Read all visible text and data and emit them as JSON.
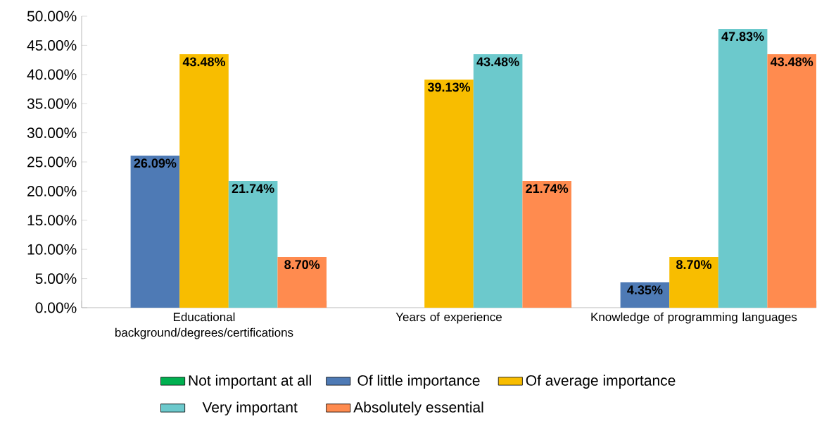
{
  "chart_data": {
    "type": "bar",
    "categories": [
      "Educational background/degrees/certifications",
      "Years of experience",
      "Knowledge of programming languages"
    ],
    "series": [
      {
        "name": "Not important at all",
        "color": "#00b050",
        "values": [
          null,
          null,
          null
        ]
      },
      {
        "name": "Of little importance",
        "color": "#4e7ab5",
        "values": [
          26.09,
          null,
          4.35
        ],
        "value_labels": [
          "26.09%",
          null,
          "4.35%"
        ]
      },
      {
        "name": "Of average importance",
        "color": "#f8bd00",
        "values": [
          43.48,
          39.13,
          8.7
        ],
        "value_labels": [
          "43.48%",
          "39.13%",
          "8.70%"
        ]
      },
      {
        "name": "Very important",
        "color": "#6cc9cc",
        "values": [
          21.74,
          43.48,
          47.83
        ],
        "value_labels": [
          "21.74%",
          "43.48%",
          "47.83%"
        ]
      },
      {
        "name": "Absolutely essential",
        "color": "#ff8b4f",
        "values": [
          8.7,
          21.74,
          43.48
        ],
        "value_labels": [
          "8.70%",
          "21.74%",
          "43.48%"
        ]
      }
    ],
    "ylim": [
      0,
      50
    ],
    "yticks": [
      {
        "value": 0,
        "label": "0.00%"
      },
      {
        "value": 5,
        "label": "5.00%"
      },
      {
        "value": 10,
        "label": "10.00%"
      },
      {
        "value": 15,
        "label": "15.00%"
      },
      {
        "value": 20,
        "label": "20.00%"
      },
      {
        "value": 25,
        "label": "25.00%"
      },
      {
        "value": 30,
        "label": "30.00%"
      },
      {
        "value": 35,
        "label": "35.00%"
      },
      {
        "value": 40,
        "label": "40.00%"
      },
      {
        "value": 45,
        "label": "45.00%"
      },
      {
        "value": 50,
        "label": "50.00%"
      }
    ],
    "legend": "bottom"
  }
}
